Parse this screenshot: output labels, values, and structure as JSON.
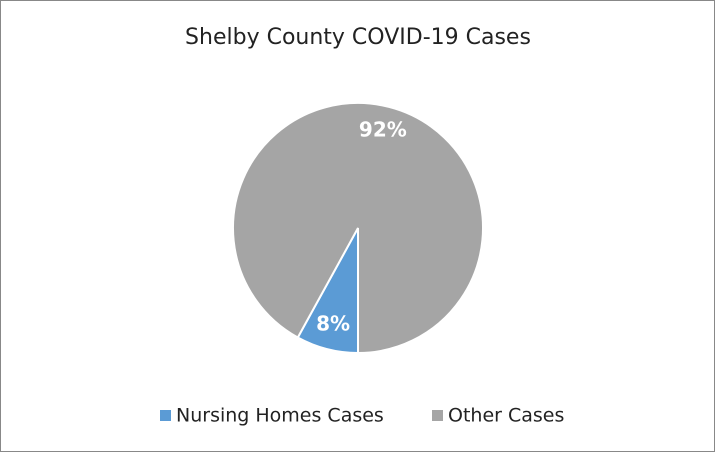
{
  "chart_data": {
    "type": "pie",
    "title": "Shelby County COVID-19 Cases",
    "categories": [
      "Nursing Homes Cases",
      "Other Cases"
    ],
    "values": [
      8,
      92
    ],
    "value_labels": [
      "8%",
      "92%"
    ],
    "colors": [
      "#5b9bd5",
      "#a5a5a5"
    ]
  }
}
